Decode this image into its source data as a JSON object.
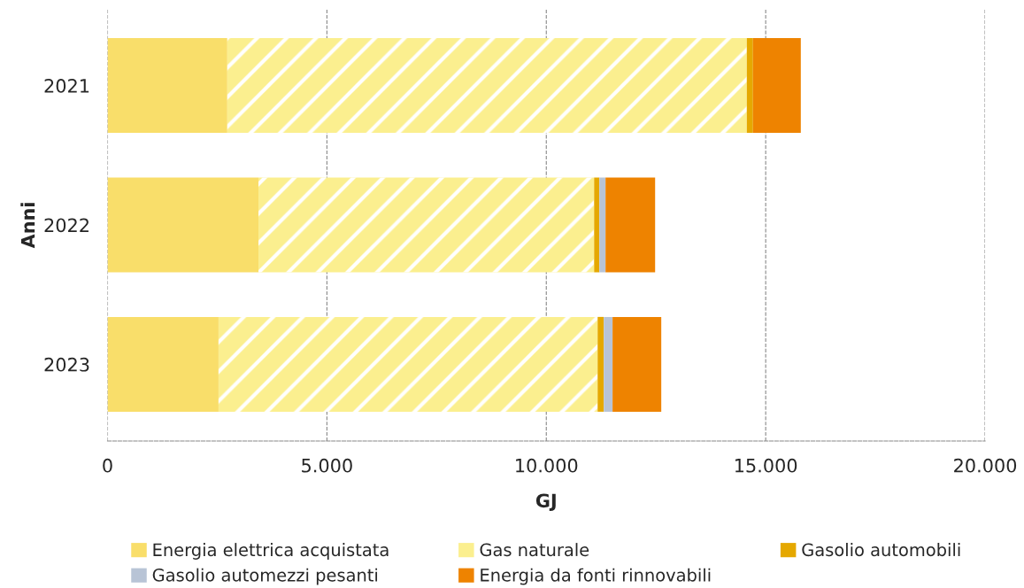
{
  "chart_data": {
    "type": "bar",
    "orientation": "horizontal",
    "stacked": true,
    "xlabel": "GJ",
    "ylabel": "Anni",
    "categories": [
      "2021",
      "2022",
      "2023"
    ],
    "series": [
      {
        "name": "Energia elettrica acquistata",
        "color": "#f9de6a",
        "values": [
          2730,
          3440,
          2530
        ]
      },
      {
        "name": "Gas naturale",
        "color": "#fbef8f",
        "values": [
          11840,
          7650,
          8640
        ]
      },
      {
        "name": "Gasolio automobili",
        "color": "#e5a800",
        "values": [
          140,
          120,
          140
        ]
      },
      {
        "name": "Gasolio automezzi pesanti",
        "color": "#b8c4d6",
        "values": [
          0,
          140,
          200
        ]
      },
      {
        "name": "Energia da fonti rinnovabili",
        "color": "#ee8300",
        "values": [
          1090,
          1130,
          1110
        ]
      }
    ],
    "xlim": [
      0,
      20000
    ],
    "xticks": [
      0,
      {
        "value": 5000,
        "label": "5.000"
      },
      {
        "value": 10000,
        "label": "10.000"
      },
      {
        "value": 15000,
        "label": "15.000"
      },
      {
        "value": 20000,
        "label": "20.000"
      }
    ],
    "grid": "x",
    "legend": "bottom"
  }
}
